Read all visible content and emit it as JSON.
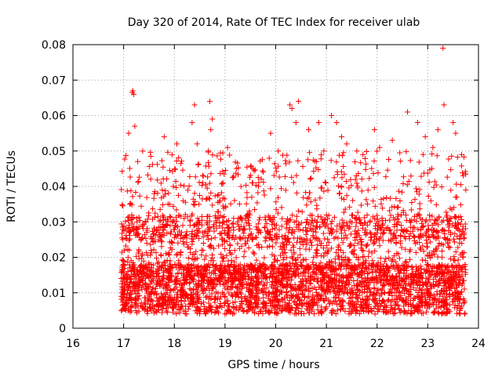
{
  "chart_data": {
    "type": "scatter",
    "title": "Day 320 of 2014, Rate Of TEC Index for receiver ulab",
    "xlabel": "GPS time / hours",
    "ylabel": "ROTI / TECUs",
    "xlim": [
      16,
      24
    ],
    "ylim": [
      0,
      0.08
    ],
    "xticks": [
      16,
      17,
      18,
      19,
      20,
      21,
      22,
      23,
      24
    ],
    "yticks": [
      0,
      0.01,
      0.02,
      0.03,
      0.04,
      0.05,
      0.06,
      0.07,
      0.08
    ],
    "xtick_labels": [
      "16",
      "17",
      "18",
      "19",
      "20",
      "21",
      "22",
      "23",
      "24"
    ],
    "ytick_labels": [
      "0",
      "0.01",
      "0.02",
      "0.03",
      "0.04",
      "0.05",
      "0.06",
      "0.07",
      "0.08"
    ],
    "grid": true,
    "marker": "+",
    "color": "#ff0000",
    "data_range_x": [
      16.95,
      23.75
    ],
    "series": [
      {
        "name": "ROTI",
        "points": [
          [
            17.18,
            0.067
          ],
          [
            17.2,
            0.066
          ],
          [
            17.17,
            0.0665
          ],
          [
            17.1,
            0.055
          ],
          [
            17.22,
            0.057
          ],
          [
            18.4,
            0.063
          ],
          [
            18.35,
            0.058
          ],
          [
            18.7,
            0.064
          ],
          [
            18.75,
            0.059
          ],
          [
            18.72,
            0.056
          ],
          [
            17.8,
            0.054
          ],
          [
            18.05,
            0.052
          ],
          [
            18.45,
            0.052
          ],
          [
            19.05,
            0.051
          ],
          [
            19.55,
            0.045
          ],
          [
            19.9,
            0.055
          ],
          [
            20.05,
            0.05
          ],
          [
            20.28,
            0.063
          ],
          [
            20.32,
            0.062
          ],
          [
            20.45,
            0.064
          ],
          [
            20.4,
            0.058
          ],
          [
            20.65,
            0.056
          ],
          [
            20.85,
            0.058
          ],
          [
            20.95,
            0.05
          ],
          [
            21.1,
            0.06
          ],
          [
            21.2,
            0.058
          ],
          [
            21.3,
            0.054
          ],
          [
            21.4,
            0.052
          ],
          [
            21.6,
            0.05
          ],
          [
            21.95,
            0.056
          ],
          [
            22.05,
            0.051
          ],
          [
            22.3,
            0.053
          ],
          [
            22.6,
            0.061
          ],
          [
            22.8,
            0.058
          ],
          [
            22.95,
            0.054
          ],
          [
            23.1,
            0.051
          ],
          [
            23.2,
            0.056
          ],
          [
            23.3,
            0.079
          ],
          [
            23.32,
            0.063
          ],
          [
            23.5,
            0.058
          ],
          [
            23.55,
            0.055
          ],
          [
            23.7,
            0.043
          ],
          [
            23.75,
            0.039
          ]
        ]
      }
    ]
  }
}
